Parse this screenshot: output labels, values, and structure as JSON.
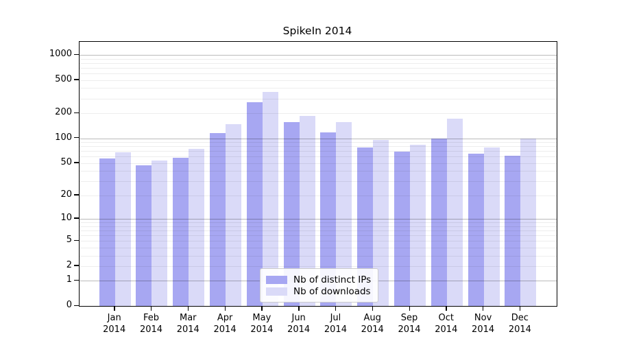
{
  "title": "SpikeIn 2014",
  "colors": {
    "distinct_ips_bar": "#a7a7f2",
    "downloads_bar": "#dadaf8",
    "major_gridline": "#b9b9b9",
    "minor_gridline": "#ececec",
    "axis": "#000000",
    "legend_border": "#cccccc"
  },
  "chart_data": {
    "type": "bar",
    "title": "SpikeIn 2014",
    "xlabel": "",
    "ylabel": "",
    "yscale": "log1p",
    "grid": "on",
    "legend_position": "lower-center",
    "ylim": [
      0,
      1430
    ],
    "yticks": [
      0,
      1,
      2,
      5,
      10,
      20,
      50,
      100,
      200,
      500,
      1000
    ],
    "minor_grid_values": [
      2,
      3,
      4,
      5,
      6,
      7,
      8,
      9,
      20,
      30,
      40,
      50,
      60,
      70,
      80,
      90,
      200,
      300,
      400,
      500,
      600,
      700,
      800,
      900
    ],
    "major_grid_values": [
      1,
      10,
      100,
      1000
    ],
    "months": [
      "Jan",
      "Feb",
      "Mar",
      "Apr",
      "May",
      "Jun",
      "Jul",
      "Aug",
      "Sep",
      "Oct",
      "Nov",
      "Dec"
    ],
    "year": "2014",
    "categories": [
      "Jan 2014",
      "Feb 2014",
      "Mar 2014",
      "Apr 2014",
      "May 2014",
      "Jun 2014",
      "Jul 2014",
      "Aug 2014",
      "Sep 2014",
      "Oct 2014",
      "Nov 2014",
      "Dec 2014"
    ],
    "series": [
      {
        "name": "Nb of distinct IPs",
        "color": "#a7a7f2",
        "values": [
          57,
          47,
          58,
          115,
          272,
          157,
          118,
          77,
          69,
          100,
          65,
          61
        ]
      },
      {
        "name": "Nb of downloads",
        "color": "#dadaf8",
        "values": [
          68,
          54,
          74,
          148,
          358,
          186,
          155,
          96,
          83,
          172,
          78,
          100
        ]
      }
    ]
  }
}
